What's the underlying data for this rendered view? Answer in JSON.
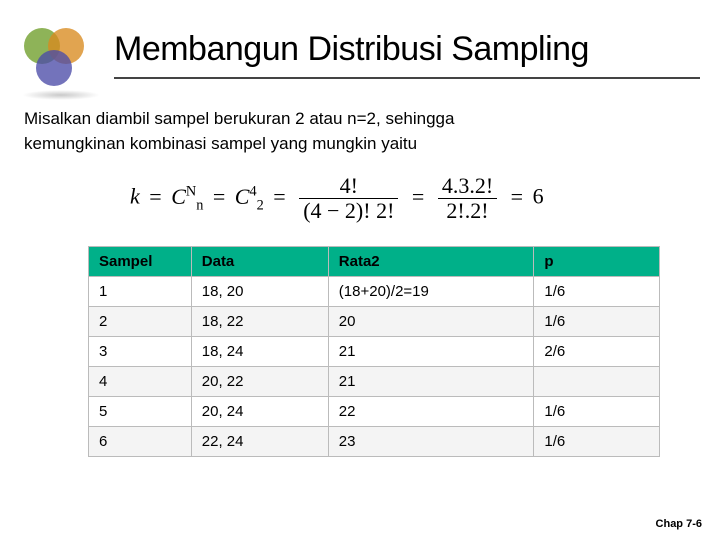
{
  "title": "Membangun Distribusi Sampling",
  "body_line1": "Misalkan diambil sampel berukuran 2 atau n=2, sehingga",
  "body_line2": "kemungkinan kombinasi sampel yang mungkin yaitu",
  "formula": {
    "lhs_k": "k",
    "C_N_n": {
      "C": "C",
      "sup": "N",
      "sub": "n"
    },
    "C_4_2": {
      "C": "C",
      "sup": "4",
      "sub": "2"
    },
    "frac1": {
      "num": "4!",
      "den": "(4 − 2)! 2!"
    },
    "frac2": {
      "num": "4.3.2!",
      "den": "2!.2!"
    },
    "result": "6"
  },
  "table": {
    "header_bg": "#00b089",
    "headers": [
      "Sampel",
      "Data",
      "Rata2",
      "p"
    ],
    "rows": [
      [
        "1",
        "18, 20",
        "(18+20)/2=19",
        "1/6"
      ],
      [
        "2",
        "18, 22",
        "20",
        "1/6"
      ],
      [
        "3",
        "18, 24",
        "21",
        "2/6"
      ],
      [
        "4",
        "20, 22",
        "21",
        ""
      ],
      [
        "5",
        "20, 24",
        "22",
        "1/6"
      ],
      [
        "6",
        "22, 24",
        "23",
        "1/6"
      ]
    ],
    "col_widths": [
      "18%",
      "24%",
      "36%",
      "22%"
    ]
  },
  "footer": "Chap 7-6"
}
